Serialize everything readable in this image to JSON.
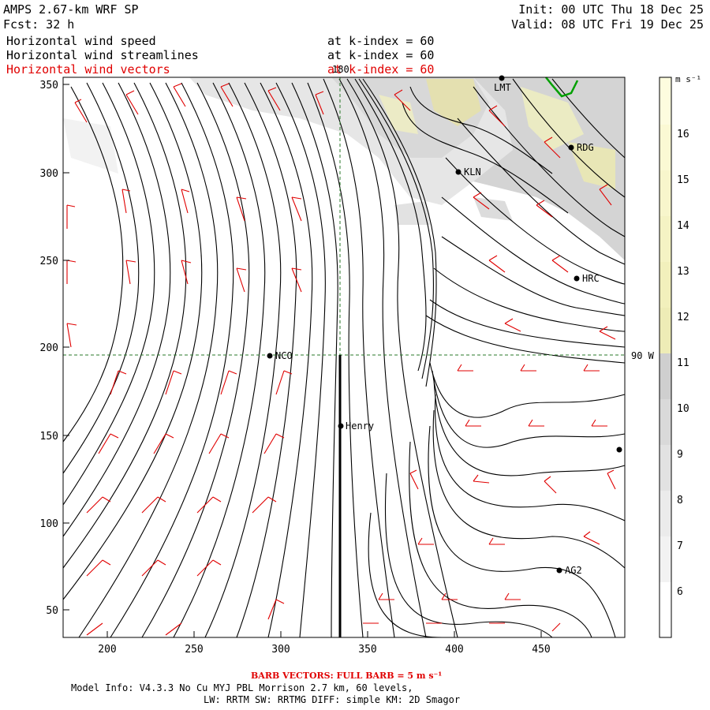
{
  "header": {
    "model_title": "AMPS 2.67-km WRF SP",
    "init_time": "Init: 00 UTC Thu 18 Dec 25",
    "forecast_hour": "Fcst:   32 h",
    "valid_time": "Valid: 08 UTC Fri 19 Dec 25",
    "fields": [
      {
        "name": "Horizontal wind speed",
        "level": "at k-index =  60"
      },
      {
        "name": "Horizontal wind streamlines",
        "level": "at k-index =  60"
      },
      {
        "name": "Horizontal wind vectors",
        "level": "at k-index =  60"
      }
    ]
  },
  "colors": {
    "vectors": "#e00000",
    "streamlines": "#000000",
    "grid": "#2a7a2a",
    "coastline": "#00a000"
  },
  "map": {
    "x_ticks": [
      "200",
      "250",
      "300",
      "350",
      "400",
      "450"
    ],
    "y_ticks": [
      "50",
      "100",
      "150",
      "200",
      "250",
      "300",
      "350"
    ],
    "meridian_label": "180",
    "parallel_label": "90 W",
    "stations": [
      "LMT",
      "RDG",
      "KLN",
      "HRC",
      "NCO",
      "Henry",
      "AG2"
    ]
  },
  "colorbar": {
    "unit": "m s⁻¹",
    "levels": [
      "6",
      "7",
      "8",
      "9",
      "10",
      "11",
      "12",
      "13",
      "14",
      "15",
      "16"
    ]
  },
  "footer": {
    "barb_note": "BARB VECTORS:  FULL BARB = 5 m s⁻¹",
    "model_info": "Model Info: V4.3.3   No Cu   MYJ PBL  Morrison          2.7 km,  60 levels,",
    "physics": "LW: RRTM SW: RRTMG   DIFF: simple KM: 2D Smagor"
  }
}
